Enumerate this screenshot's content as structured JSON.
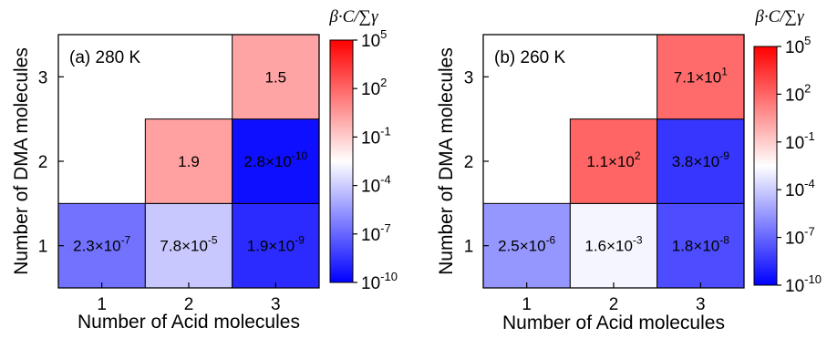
{
  "chart_data": [
    {
      "type": "heatmap",
      "panel_label": "(a) 280 K",
      "xlabel": "Number of Acid molecules",
      "ylabel": "Number of DMA molecules",
      "x_categories": [
        "1",
        "2",
        "3"
      ],
      "y_categories": [
        "1",
        "2",
        "3"
      ],
      "color_scale": "log",
      "colorbar_title": "β·C/∑γ",
      "colorbar_ticks": [
        {
          "base": "10",
          "exp": "5"
        },
        {
          "base": "10",
          "exp": "2"
        },
        {
          "base": "10",
          "exp": "-1"
        },
        {
          "base": "10",
          "exp": "-4"
        },
        {
          "base": "10",
          "exp": "-7"
        },
        {
          "base": "10",
          "exp": "-10"
        }
      ],
      "colorbar_range_log10": [
        -10,
        5
      ],
      "cells": [
        {
          "acid": 1,
          "dma": 1,
          "value": 2.3e-07,
          "label": {
            "mant": "2.3",
            "exp": "-7"
          }
        },
        {
          "acid": 2,
          "dma": 1,
          "value": 7.8e-05,
          "label": {
            "mant": "7.8",
            "exp": "-5"
          }
        },
        {
          "acid": 3,
          "dma": 1,
          "value": 1.9e-09,
          "label": {
            "mant": "1.9",
            "exp": "-9"
          }
        },
        {
          "acid": 2,
          "dma": 2,
          "value": 1.9,
          "label": {
            "mant": "1.9",
            "exp": ""
          }
        },
        {
          "acid": 3,
          "dma": 2,
          "value": 2.8e-10,
          "label": {
            "mant": "2.8",
            "exp": "-10"
          }
        },
        {
          "acid": 3,
          "dma": 3,
          "value": 1.5,
          "label": {
            "mant": "1.5",
            "exp": ""
          }
        }
      ]
    },
    {
      "type": "heatmap",
      "panel_label": "(b) 260 K",
      "xlabel": "Number of Acid molecules",
      "ylabel": "Number of DMA molecules",
      "x_categories": [
        "1",
        "2",
        "3"
      ],
      "y_categories": [
        "1",
        "2",
        "3"
      ],
      "color_scale": "log",
      "colorbar_title": "β·C/∑γ",
      "colorbar_ticks": [
        {
          "base": "10",
          "exp": "5"
        },
        {
          "base": "10",
          "exp": "2"
        },
        {
          "base": "10",
          "exp": "-1"
        },
        {
          "base": "10",
          "exp": "-4"
        },
        {
          "base": "10",
          "exp": "-7"
        },
        {
          "base": "10",
          "exp": "-10"
        }
      ],
      "colorbar_range_log10": [
        -10,
        5
      ],
      "cells": [
        {
          "acid": 1,
          "dma": 1,
          "value": 2.5e-06,
          "label": {
            "mant": "2.5",
            "exp": "-6"
          }
        },
        {
          "acid": 2,
          "dma": 1,
          "value": 0.0016,
          "label": {
            "mant": "1.6",
            "exp": "-3"
          }
        },
        {
          "acid": 3,
          "dma": 1,
          "value": 1.8e-08,
          "label": {
            "mant": "1.8",
            "exp": "-8"
          }
        },
        {
          "acid": 2,
          "dma": 2,
          "value": 110,
          "label": {
            "mant": "1.1",
            "exp": "2"
          }
        },
        {
          "acid": 3,
          "dma": 2,
          "value": 3.8e-09,
          "label": {
            "mant": "3.8",
            "exp": "-9"
          }
        },
        {
          "acid": 3,
          "dma": 3,
          "value": 71,
          "label": {
            "mant": "7.1",
            "exp": "1"
          }
        }
      ]
    }
  ],
  "colors": {
    "low": "#0000ff",
    "mid": "#ffffff",
    "high": "#ff0000",
    "empty_cell": "#ffffff"
  },
  "multiply_sign": "×"
}
